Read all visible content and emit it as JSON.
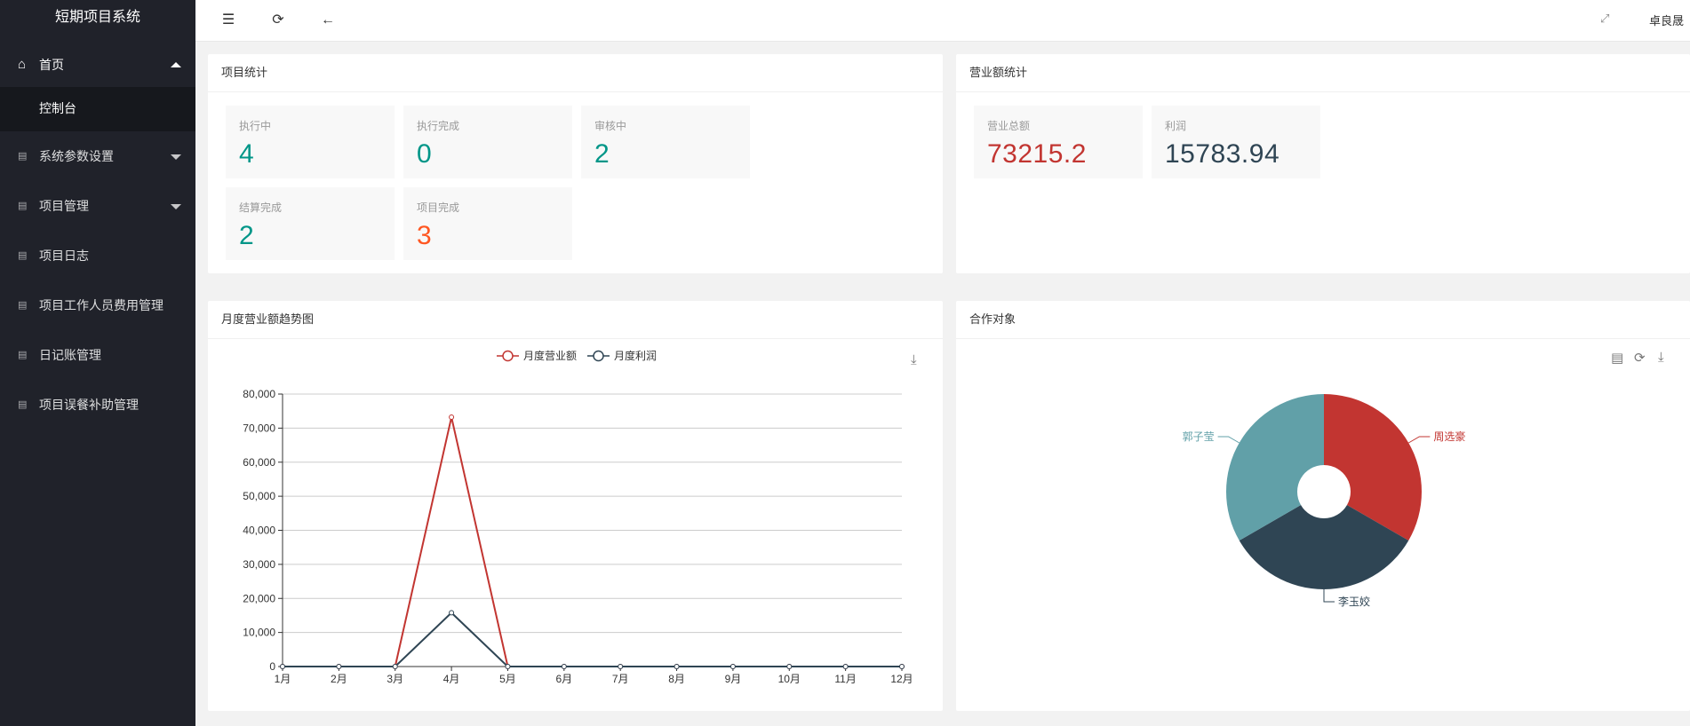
{
  "app": {
    "title": "短期项目系统"
  },
  "sidebar": {
    "items": [
      {
        "label": "首页",
        "icon": "home-icon"
      },
      {
        "label": "控制台"
      },
      {
        "label": "系统参数设置",
        "icon": "doc-icon"
      },
      {
        "label": "项目管理",
        "icon": "doc-icon"
      },
      {
        "label": "项目日志",
        "icon": "doc-icon"
      },
      {
        "label": "项目工作人员费用管理",
        "icon": "doc-icon"
      },
      {
        "label": "日记账管理",
        "icon": "doc-icon"
      },
      {
        "label": "项目误餐补助管理",
        "icon": "doc-icon"
      }
    ]
  },
  "header": {
    "user": "卓良晟"
  },
  "project_stats": {
    "title": "项目统计",
    "items": [
      {
        "label": "执行中",
        "value": "4"
      },
      {
        "label": "执行完成",
        "value": "0"
      },
      {
        "label": "审核中",
        "value": "2"
      },
      {
        "label": "结算完成",
        "value": "2"
      },
      {
        "label": "项目完成",
        "value": "3"
      }
    ]
  },
  "revenue_stats": {
    "title": "营业额统计",
    "items": [
      {
        "label": "营业总额",
        "value": "73215.2"
      },
      {
        "label": "利润",
        "value": "15783.94"
      }
    ]
  },
  "colors": {
    "accent": "#009688",
    "orange": "#ff5722",
    "red": "#c23531",
    "navy": "#2f4554",
    "teal": "#61a0a8",
    "sidebar": "#20222a"
  },
  "chart_data": [
    {
      "type": "line",
      "title": "月度营业额趋势图",
      "categories": [
        "1月",
        "2月",
        "3月",
        "4月",
        "5月",
        "6月",
        "7月",
        "8月",
        "9月",
        "10月",
        "11月",
        "12月"
      ],
      "series": [
        {
          "name": "月度营业额",
          "color": "#c23531",
          "values": [
            0,
            0,
            0,
            73215.2,
            0,
            0,
            0,
            0,
            0,
            0,
            0,
            0
          ]
        },
        {
          "name": "月度利润",
          "color": "#2f4554",
          "values": [
            0,
            0,
            0,
            15783.94,
            0,
            0,
            0,
            0,
            0,
            0,
            0,
            0
          ]
        }
      ],
      "ylim": [
        0,
        80000
      ],
      "yticks": [
        "0",
        "10,000",
        "20,000",
        "30,000",
        "40,000",
        "50,000",
        "60,000",
        "70,000",
        "80,000"
      ],
      "legend": "top-center",
      "grid": true
    },
    {
      "type": "pie",
      "title": "合作对象",
      "slices": [
        {
          "name": "周选豪",
          "value": 1,
          "color": "#c23531"
        },
        {
          "name": "李玉姣",
          "value": 1,
          "color": "#2f4554"
        },
        {
          "name": "郭子莹",
          "value": 1,
          "color": "#61a0a8"
        }
      ]
    }
  ]
}
